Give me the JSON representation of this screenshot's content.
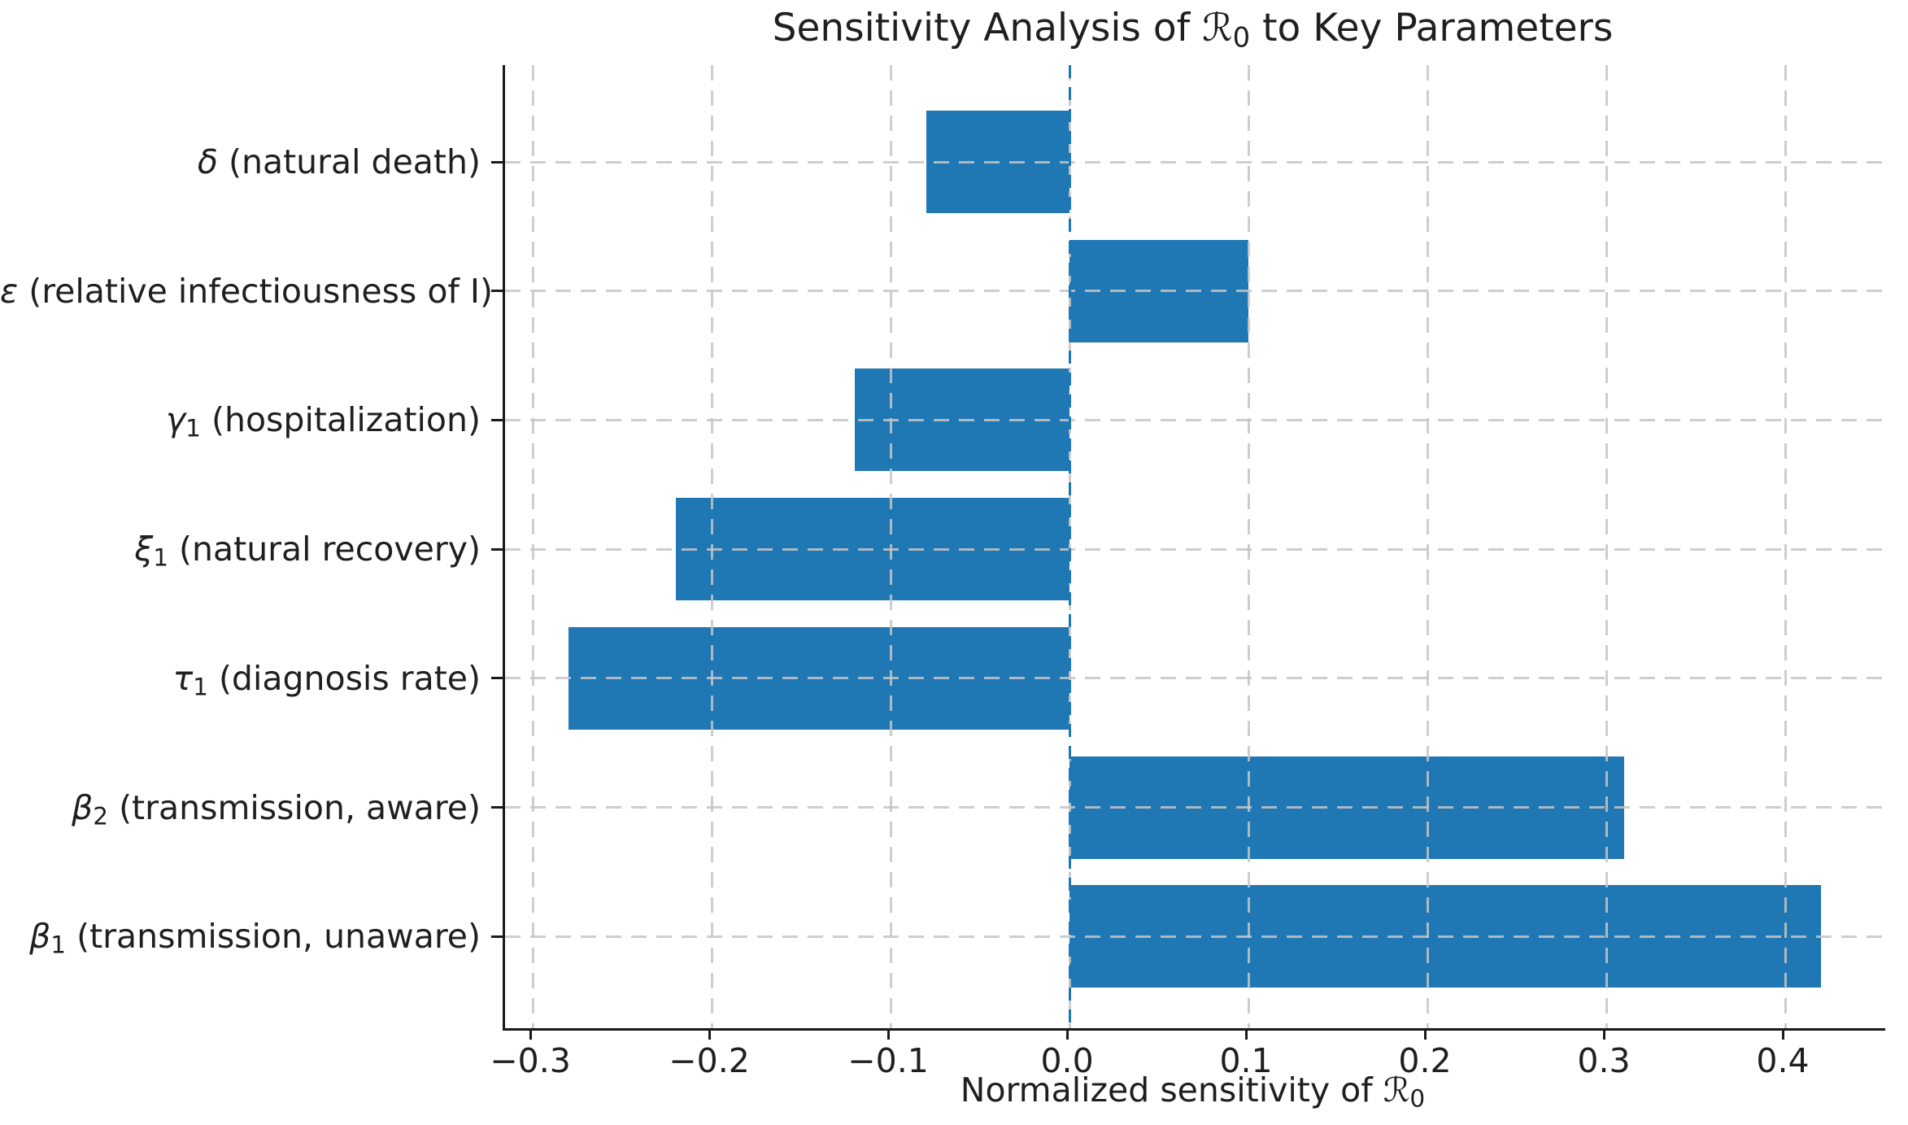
{
  "title_parts": {
    "prefix": "Sensitivity Analysis of ",
    "symbol": "ℛ",
    "sub": "0",
    "suffix": " to Key Parameters"
  },
  "xlabel_parts": {
    "prefix": "Normalized sensitivity of ",
    "symbol": "ℛ",
    "sub": "0"
  },
  "chart_data": {
    "type": "bar",
    "orientation": "horizontal",
    "title": "Sensitivity Analysis of ℛ₀ to Key Parameters",
    "xlabel": "Normalized sensitivity of ℛ₀",
    "ylabel": "",
    "categories": [
      {
        "id": "delta",
        "symbol": "δ",
        "sub": "",
        "desc": "(natural death)",
        "full": "δ (natural death)",
        "value": -0.08
      },
      {
        "id": "epsilon",
        "symbol": "ε",
        "sub": "",
        "desc": "(relative infectiousness of I)",
        "full": "ε (relative infectiousness of I)",
        "value": 0.1
      },
      {
        "id": "gamma1",
        "symbol": "γ",
        "sub": "1",
        "desc": "(hospitalization)",
        "full": "γ₁ (hospitalization)",
        "value": -0.12
      },
      {
        "id": "xi1",
        "symbol": "ξ",
        "sub": "1",
        "desc": "(natural recovery)",
        "full": "ξ₁ (natural recovery)",
        "value": -0.22
      },
      {
        "id": "tau1",
        "symbol": "τ",
        "sub": "1",
        "desc": "(diagnosis rate)",
        "full": "τ₁ (diagnosis rate)",
        "value": -0.28
      },
      {
        "id": "beta2",
        "symbol": "β",
        "sub": "2",
        "desc": "(transmission, aware)",
        "full": "β₂ (transmission, aware)",
        "value": 0.31
      },
      {
        "id": "beta1",
        "symbol": "β",
        "sub": "1",
        "desc": "(transmission, unaware)",
        "full": "β₁ (transmission, unaware)",
        "value": 0.42
      }
    ],
    "values": [
      -0.08,
      0.1,
      -0.12,
      -0.22,
      -0.28,
      0.31,
      0.42
    ],
    "x_ticks": {
      "values": [
        -0.3,
        -0.2,
        -0.1,
        0.0,
        0.1,
        0.2,
        0.3,
        0.4
      ],
      "labels": [
        "−0.3",
        "−0.2",
        "−0.1",
        "0.0",
        "0.1",
        "0.2",
        "0.3",
        "0.4"
      ]
    },
    "xlim": [
      -0.3155,
      0.4559
    ],
    "grid": {
      "on": true,
      "style": "dashed",
      "color": "#c5c5c5",
      "above_bars": true
    },
    "bar_color": "#1f77b4",
    "zero_line": {
      "value": 0.0,
      "style": "dashed",
      "color": "#1f77b4"
    },
    "background": "#ffffff",
    "text_color": "#1f1f1f",
    "legend": null
  }
}
